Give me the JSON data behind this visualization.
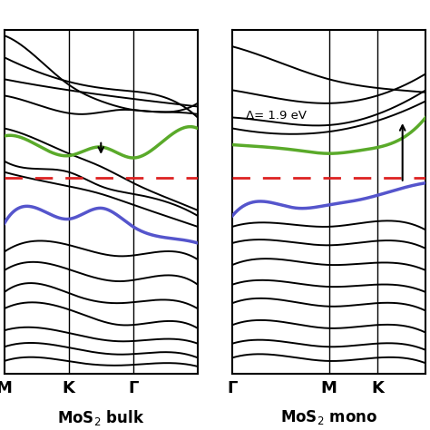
{
  "fig_width": 4.74,
  "fig_height": 4.74,
  "dpi": 100,
  "bg_color": "#ffffff",
  "black": "#000000",
  "green_color": "#5aaa2a",
  "blue_color": "#5555cc",
  "red_dashed_color": "#dd2222",
  "left_label": "MoS$_2$ bulk",
  "right_label": "MoS$_2$ mono",
  "annotation": "Δ= 1.9 eV",
  "lw_band": 1.4,
  "lw_highlight": 2.5,
  "lw_fermi": 2.0,
  "lw_spine": 1.5
}
